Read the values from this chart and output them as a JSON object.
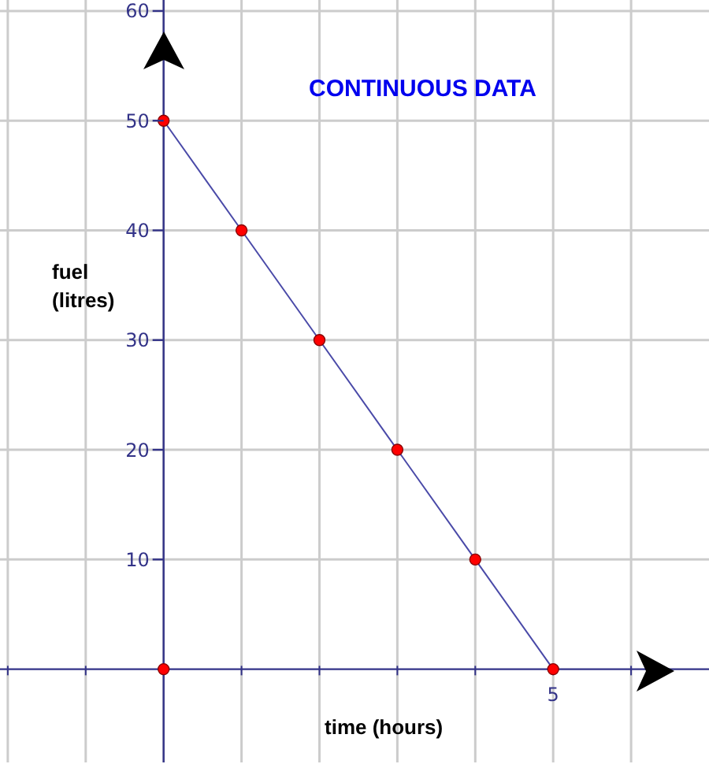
{
  "chart_data": {
    "type": "line",
    "title": "CONTINUOUS DATA",
    "xlabel": "time (hours)",
    "ylabel": "fuel\n(litres)",
    "categories": [
      null,
      null,
      null,
      null,
      null,
      null,
      null,
      "5",
      null
    ],
    "ylim": [
      -8.5,
      61
    ],
    "yticks": [
      10,
      20,
      30,
      40,
      50,
      60
    ],
    "ref_lines": [
      {
        "axis": "y",
        "value": 0,
        "color": "#333388"
      }
    ],
    "grid": true,
    "marker": "circle",
    "line_style": "solid",
    "series": [
      {
        "values": [
          null,
          null,
          50,
          40,
          30,
          20,
          10,
          0,
          null
        ],
        "color": "#4a4aa8",
        "colors": [
          null,
          null,
          "#ff0000",
          "#ff0000",
          "#ff0000",
          "#ff0000",
          "#ff0000",
          "#ff0000",
          null
        ]
      },
      {
        "type": "scatter",
        "values": [
          null,
          null,
          0,
          null,
          null,
          null,
          null,
          null,
          null
        ],
        "color": "#ff0000"
      }
    ]
  }
}
